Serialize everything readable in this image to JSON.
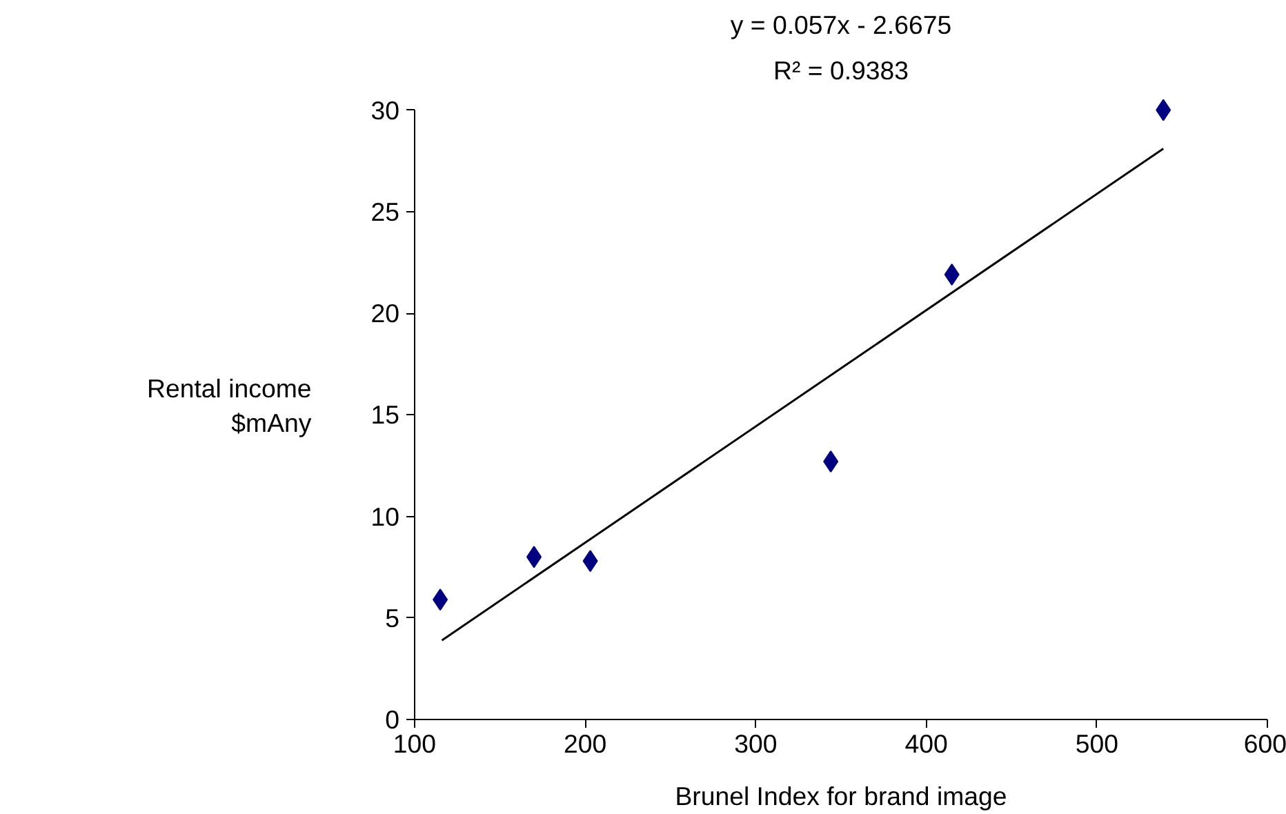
{
  "chart_data": {
    "type": "scatter",
    "xlabel": "Brunel Index for brand image",
    "ylabel": "Rental income\n$mAny",
    "annotations": [
      "y = 0.057x - 2.6675",
      "R² = 0.9383"
    ],
    "series": [
      {
        "color": "#000080",
        "marker": "diamond",
        "x": [
          115,
          170,
          203,
          344,
          415,
          539
        ],
        "values": [
          5.9,
          8.0,
          7.8,
          12.7,
          21.9,
          30
        ]
      },
      {
        "type": "line",
        "color": "#000000",
        "line_style": "solid",
        "x": [
          116,
          539
        ],
        "values": [
          3.9,
          28.1
        ]
      }
    ],
    "xlim": [
      100,
      600
    ],
    "xticks": [
      100,
      200,
      300,
      400,
      500,
      600
    ],
    "ylim": [
      0,
      30
    ],
    "yticks": [
      0,
      5,
      10,
      15,
      20,
      25,
      30
    ],
    "grid": false
  }
}
